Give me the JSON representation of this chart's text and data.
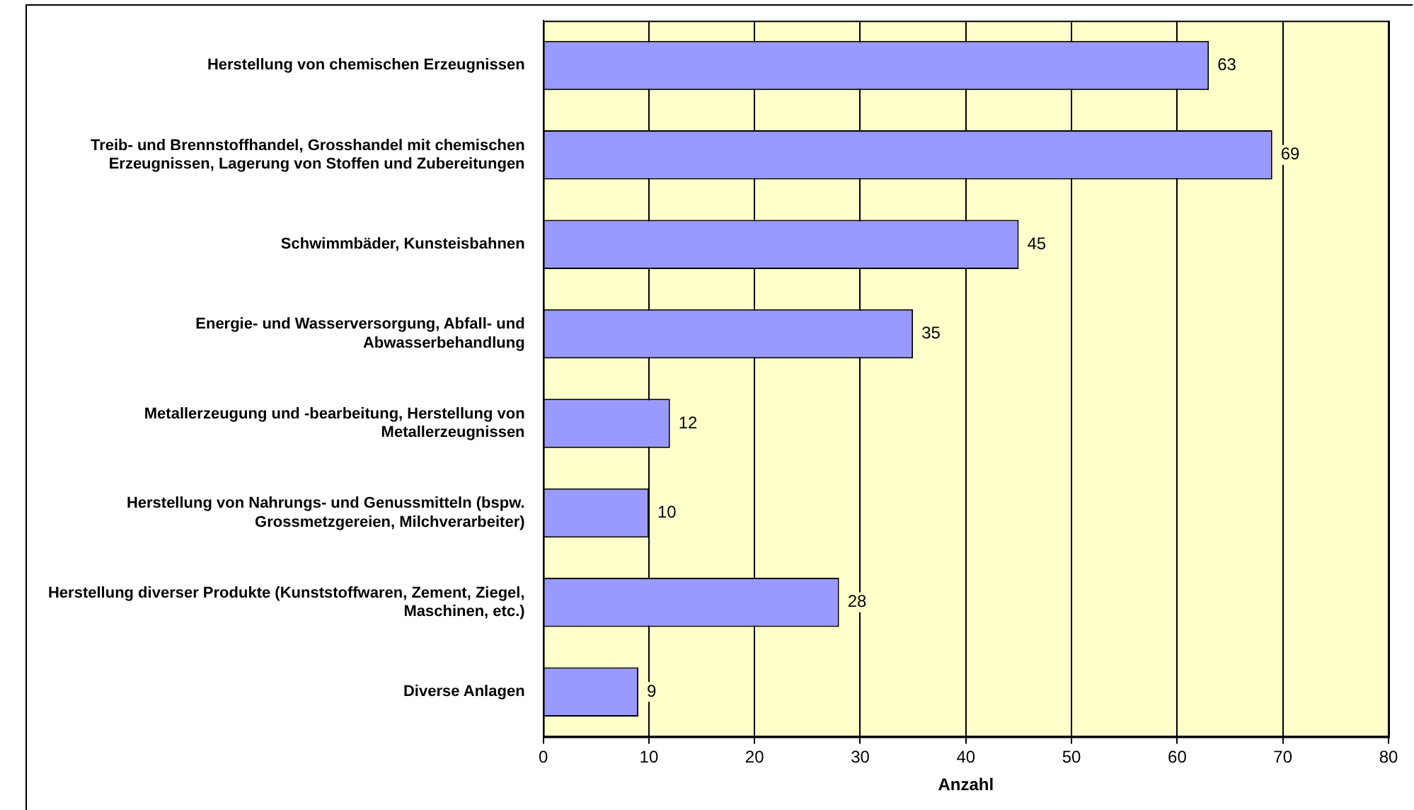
{
  "chart_data": {
    "type": "bar",
    "orientation": "horizontal",
    "xlabel": "Anzahl",
    "categories": [
      "Herstellung von chemischen Erzeugnissen",
      "Treib- und Brennstoffhandel, Grosshandel mit chemischen Erzeugnissen, Lagerung von Stoffen und Zubereitungen",
      "Schwimmbäder, Kunsteisbahnen",
      "Energie- und Wasserversorgung, Abfall- und Abwasserbehandlung",
      "Metallerzeugung und -bearbeitung, Herstellung von Metallerzeugnissen",
      "Herstellung von Nahrungs- und Genussmitteln (bspw. Grossmetzgereien, Milchverarbeiter)",
      "Herstellung diverser Produkte (Kunststoffwaren, Zement, Ziegel, Maschinen, etc.)",
      "Diverse Anlagen"
    ],
    "values": [
      63,
      69,
      45,
      35,
      12,
      10,
      28,
      9
    ],
    "color": "#9999ff",
    "xlim": [
      0,
      80
    ],
    "xticks": [
      0,
      10,
      20,
      30,
      40,
      50,
      60,
      70,
      80
    ],
    "grid": "x",
    "data_labels": true,
    "legend": false
  }
}
